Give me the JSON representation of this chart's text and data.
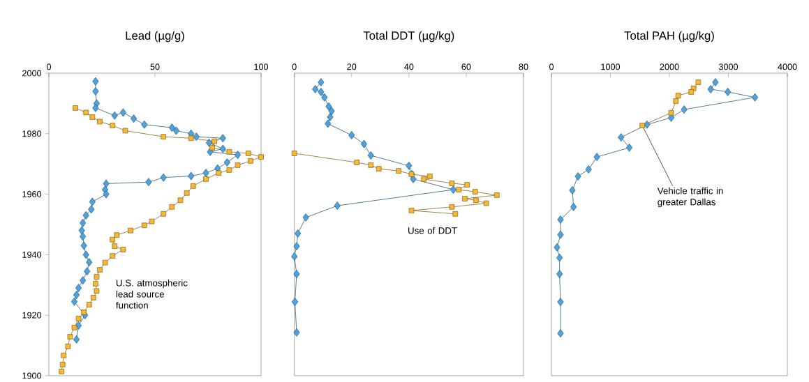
{
  "chart_data": [
    {
      "type": "line",
      "title": "Lead (µg/g)",
      "xlim": [
        0,
        100
      ],
      "xticks": [
        0,
        50,
        100
      ],
      "ylim": [
        1900,
        2000
      ],
      "yticks": [
        1900,
        1920,
        1940,
        1960,
        1980,
        2000
      ],
      "line_style": "solid",
      "series": [
        {
          "color": "#4da3e0",
          "marker": "diamond",
          "x": [
            22,
            22,
            22.5,
            22,
            31,
            35,
            40,
            45,
            58,
            60,
            67,
            69.5,
            82,
            75.5,
            82,
            76,
            89,
            84,
            79.5,
            74,
            67,
            54,
            47,
            27,
            26.5,
            27,
            20.5,
            20,
            17.5,
            16,
            15.5,
            16,
            16.5,
            17.5,
            19,
            18,
            16,
            14,
            13,
            12,
            17,
            14,
            13
          ],
          "values": [
            1997.3,
            1994,
            1990,
            1988.5,
            1986,
            1987,
            1985,
            1983,
            1982,
            1981,
            1980,
            1979,
            1978.5,
            1977,
            1975,
            1974,
            1973,
            1970.5,
            1968.5,
            1967,
            1966,
            1965.5,
            1964,
            1963.5,
            1961.5,
            1960,
            1957.5,
            1955,
            1953,
            1950.5,
            1948,
            1946,
            1943,
            1940,
            1937.5,
            1934.5,
            1931.5,
            1929,
            1926.7,
            1924.5,
            1920,
            1916.6,
            1912
          ]
        },
        {
          "name": "U.S. atmospheric lead source function",
          "color": "#f7b733",
          "marker": "square",
          "x": [
            12.5,
            17.5,
            20.5,
            24,
            30,
            36,
            54,
            67,
            78,
            77,
            85,
            94,
            100,
            95,
            89,
            85,
            80,
            74,
            68,
            65,
            62,
            58,
            54,
            48.5,
            45,
            38.5,
            32,
            30,
            31,
            35,
            30,
            26.5,
            24,
            22.5,
            22,
            22.5,
            21,
            19,
            16.5,
            14,
            12,
            10,
            9,
            7,
            6.5,
            6
          ],
          "values": [
            1988.5,
            1987,
            1985.5,
            1984,
            1982.7,
            1981,
            1979,
            1978.5,
            1977.5,
            1975.4,
            1974,
            1973.5,
            1972.3,
            1971,
            1969.6,
            1968,
            1967,
            1965,
            1962.7,
            1960.4,
            1958,
            1955.8,
            1953.5,
            1951,
            1949.7,
            1948,
            1946.5,
            1945,
            1942.8,
            1941.7,
            1939.6,
            1937.4,
            1935,
            1932.7,
            1930.4,
            1928,
            1925.8,
            1923.5,
            1921,
            1918.9,
            1915.9,
            1912.9,
            1909.7,
            1906.7,
            1903.7,
            1901.4
          ]
        }
      ]
    },
    {
      "type": "line",
      "title": "Total DDT (µg/kg)",
      "xlim": [
        0,
        80
      ],
      "xticks": [
        0,
        20,
        40,
        60,
        80
      ],
      "ylim": [
        1900,
        2000
      ],
      "yticks": [
        1900,
        1920,
        1940,
        1960,
        1980,
        2000
      ],
      "tick_labels": "x",
      "line_style": "solid",
      "series": [
        {
          "color": "#4da3e0",
          "marker": "diamond",
          "x": [
            9.3,
            7.3,
            9.3,
            10.5,
            12,
            13,
            12.5,
            11.7,
            20,
            24.3,
            26.7,
            40,
            41,
            41.5,
            55.5,
            15,
            4,
            1.2,
            0.8,
            0,
            0.8,
            0.2,
            0.8
          ],
          "values": [
            1997,
            1994.7,
            1993.8,
            1992,
            1989,
            1987.5,
            1985.5,
            1983.3,
            1979.5,
            1976.6,
            1972.8,
            1969.4,
            1966.6,
            1965,
            1961.5,
            1956.2,
            1952.3,
            1947,
            1942.8,
            1939.4,
            1933.6,
            1924.4,
            1914.3
          ]
        },
        {
          "name": "Use of DDT",
          "color": "#f7b733",
          "marker": "square",
          "x": [
            0,
            21.8,
            26.7,
            29.5,
            36.4,
            40.9,
            47.3,
            45.2,
            55,
            60.3,
            57.4,
            63.1,
            70.7,
            59.5,
            63.4,
            67,
            55,
            40.9,
            56.2
          ],
          "values": [
            1973.5,
            1970.5,
            1969.6,
            1968.4,
            1967.7,
            1966.6,
            1965.9,
            1965,
            1963.6,
            1963.1,
            1961.5,
            1960.8,
            1959.7,
            1958.5,
            1958,
            1957,
            1955.8,
            1954.6,
            1953.5
          ]
        }
      ]
    },
    {
      "type": "line",
      "title": "Total PAH (µg/kg)",
      "xlim": [
        0,
        4000
      ],
      "xticks": [
        0,
        1000,
        2000,
        3000,
        4000
      ],
      "ylim": [
        1900,
        2000
      ],
      "yticks": [
        1900,
        1920,
        1940,
        1960,
        1980,
        2000
      ],
      "tick_labels": "x",
      "line_style": "solid",
      "series": [
        {
          "color": "#4da3e0",
          "marker": "diamond",
          "x": [
            2780,
            2700,
            2990,
            3450,
            2250,
            2030,
            1620,
            1180,
            1320,
            770,
            630,
            450,
            355,
            375,
            154,
            154,
            95,
            138,
            138,
            154,
            154
          ],
          "values": [
            1997,
            1994.7,
            1993.8,
            1992,
            1988,
            1985.3,
            1983,
            1978.8,
            1975.4,
            1972.3,
            1968.2,
            1965.9,
            1961.3,
            1955.8,
            1951.6,
            1946.6,
            1942.4,
            1939,
            1933.6,
            1924.4,
            1914
          ]
        },
        {
          "name": "Vehicle traffic in greater Dallas",
          "color": "#f7b733",
          "marker": "square",
          "x": [
            2490,
            2410,
            2370,
            2150,
            2110,
            2030,
            1540
          ],
          "values": [
            1997,
            1995,
            1993.8,
            1992.6,
            1990.8,
            1986.9,
            1982.7
          ]
        }
      ]
    }
  ]
}
